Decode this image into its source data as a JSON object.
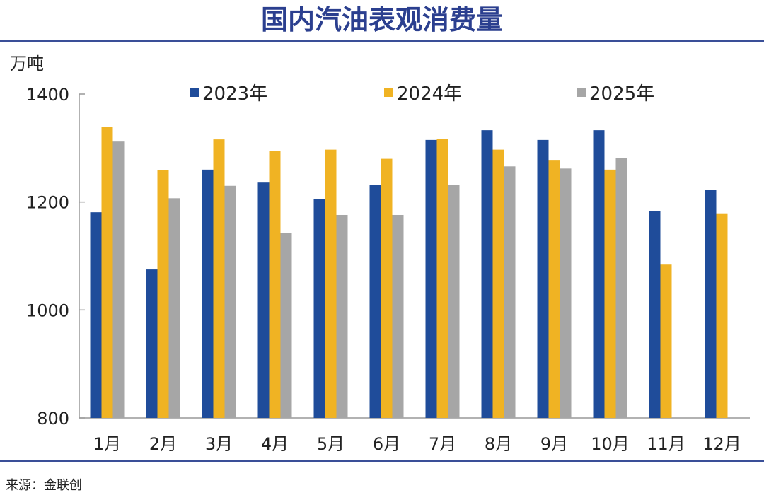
{
  "title": "国内汽油表观消费量",
  "unit": "万吨",
  "source": "来源：金联创",
  "chart_data": {
    "type": "bar",
    "title": "国内汽油表观消费量",
    "ylabel": "万吨",
    "ylim": [
      800,
      1400
    ],
    "yticks": [
      800,
      1000,
      1200,
      1400
    ],
    "categories": [
      "1月",
      "2月",
      "3月",
      "4月",
      "5月",
      "6月",
      "7月",
      "8月",
      "9月",
      "10月",
      "11月",
      "12月"
    ],
    "legend_position": "top",
    "series": [
      {
        "name": "2023年",
        "color": "#1f4c9a",
        "values": [
          1181,
          1075,
          1260,
          1236,
          1206,
          1232,
          1315,
          1333,
          1315,
          1333,
          1183,
          1222
        ]
      },
      {
        "name": "2024年",
        "color": "#f0b323",
        "values": [
          1339,
          1259,
          1316,
          1294,
          1297,
          1280,
          1317,
          1297,
          1278,
          1260,
          1084,
          1179
        ]
      },
      {
        "name": "2025年",
        "color": "#a6a6a6",
        "values": [
          1312,
          1207,
          1230,
          1143,
          1176,
          1176,
          1231,
          1266,
          1262,
          1281,
          null,
          null
        ]
      }
    ]
  }
}
